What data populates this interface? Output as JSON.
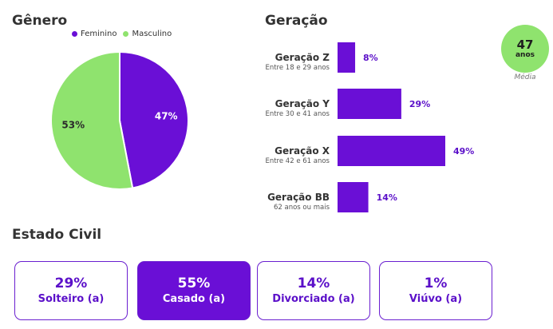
{
  "genero": {
    "title": "Gênero",
    "legend": [
      "Feminino",
      "Masculino"
    ]
  },
  "geracao": {
    "title": "Geração",
    "media": {
      "value": "47",
      "unit": "anos",
      "caption": "Média"
    }
  },
  "estado_civil": {
    "title": "Estado Civil",
    "cards": [
      {
        "value": "29%",
        "label": "Solteiro (a)",
        "active": false
      },
      {
        "value": "55%",
        "label": "Casado (a)",
        "active": true
      },
      {
        "value": "14%",
        "label": "Divorciado (a)",
        "active": false
      },
      {
        "value": "1%",
        "label": "Viúvo (a)",
        "active": false
      }
    ]
  },
  "colors": {
    "feminino": "#6a0fd6",
    "masculino": "#8fe36e",
    "bar": "#6a0fd6",
    "bar_label": "#5b10c9"
  },
  "chart_data": [
    {
      "type": "pie",
      "categories": [
        "Feminino",
        "Masculino"
      ],
      "values": [
        47,
        53
      ],
      "labels": [
        "47%",
        "53%"
      ],
      "title": "Gênero",
      "legend": "top"
    },
    {
      "type": "bar",
      "orientation": "horizontal",
      "categories": [
        "Geração Z",
        "Geração Y",
        "Geração X",
        "Geração BB"
      ],
      "subtitles": [
        "Entre 18 e 29 anos",
        "Entre 30 e 41 anos",
        "Entre 42 e 61 anos",
        "62 anos ou mais"
      ],
      "values": [
        8,
        29,
        49,
        14
      ],
      "labels": [
        "8%",
        "29%",
        "49%",
        "14%"
      ],
      "title": "Geração",
      "xlim": [
        0,
        49
      ]
    }
  ]
}
